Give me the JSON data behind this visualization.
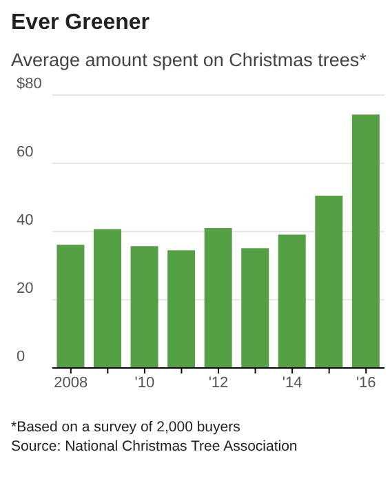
{
  "chart_data": {
    "type": "bar",
    "title": "Ever Greener",
    "subtitle": "Average amount spent on Christmas trees*",
    "categories": [
      "2008",
      null,
      "'10",
      null,
      "'12",
      null,
      "'14",
      null,
      "'16"
    ],
    "values": [
      36.1,
      40.7,
      35.7,
      34.5,
      41.0,
      35.1,
      39.1,
      50.5,
      74.3
    ],
    "color": "#55a045",
    "ylim": [
      0,
      80
    ],
    "yticks": [
      0,
      20,
      40,
      60,
      {
        "value": 80,
        "label": "$80"
      }
    ],
    "grid": "y",
    "annotations": [
      "*Based on a survey of 2,000 buyers",
      "Source: National Christmas Tree Association"
    ]
  }
}
